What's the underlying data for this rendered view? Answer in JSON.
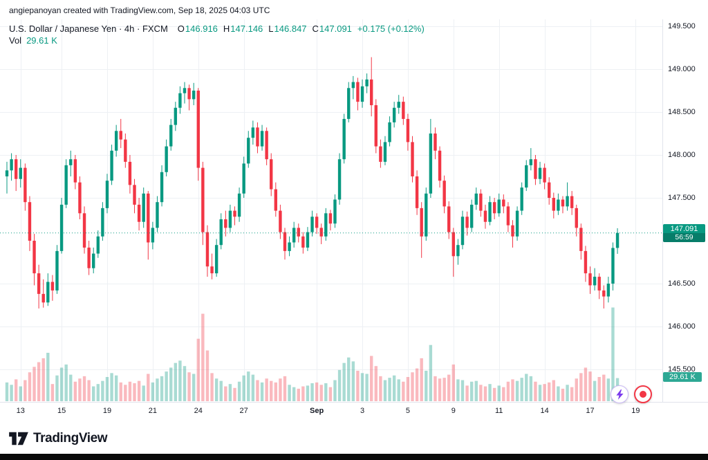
{
  "attribution": "angiepanoyan created with TradingView.com, Sep 18, 2025 04:03 UTC",
  "legend": {
    "title": "U.S. Dollar / Japanese Yen · 4h · FXCM",
    "ohlc": [
      {
        "label": "O",
        "value": "146.916"
      },
      {
        "label": "H",
        "value": "147.146"
      },
      {
        "label": "L",
        "value": "146.847"
      },
      {
        "label": "C",
        "value": "147.091"
      }
    ],
    "change": "+0.175 (+0.12%)",
    "vol_label": "Vol",
    "vol_value": "29.61 K"
  },
  "price_axis": {
    "badge": {
      "price": "147.091",
      "countdown": "56:59"
    },
    "volume_badge": "29.61 K"
  },
  "footer": {
    "brand": "TradingView"
  },
  "icons": {
    "bottom_right": [
      "lightning-icon",
      "record-icon"
    ],
    "logo": "tradingview-17-mark"
  },
  "colors": {
    "up": "#089981",
    "down": "#F23645",
    "vol_up": "rgba(8,153,129,0.35)",
    "vol_down": "rgba(242,54,69,0.35)",
    "grid": "#EDF0F4",
    "axis_border": "#E0E3EB",
    "last_price_line": "#089981",
    "badge_bg": "#089981",
    "boost": "#7C3AED",
    "record": "#F23645",
    "text": "#131722"
  },
  "chart_data": {
    "type": "candlestick",
    "title": "U.S. Dollar / Japanese Yen",
    "interval": "4h",
    "venue": "FXCM",
    "legend_position": "top-left",
    "grid": true,
    "y_ticks": [
      "149.500",
      "149.000",
      "148.500",
      "148.000",
      "147.500",
      "146.500",
      "146.000",
      "145.500"
    ],
    "y_range_visible": [
      145.11,
      149.58
    ],
    "x_ticks": [
      {
        "t": "13",
        "slot": 3
      },
      {
        "t": "15",
        "slot": 12
      },
      {
        "t": "19",
        "slot": 22
      },
      {
        "t": "21",
        "slot": 32
      },
      {
        "t": "24",
        "slot": 42
      },
      {
        "t": "27",
        "slot": 52
      },
      {
        "t": "Sep",
        "slot": 68,
        "bold": true
      },
      {
        "t": "3",
        "slot": 78
      },
      {
        "t": "5",
        "slot": 88
      },
      {
        "t": "9",
        "slot": 98
      },
      {
        "t": "11",
        "slot": 108
      },
      {
        "t": "14",
        "slot": 118
      },
      {
        "t": "17",
        "slot": 128
      },
      {
        "t": "19",
        "slot": 138
      }
    ],
    "total_slots": 143,
    "last_price": 147.091,
    "countdown": "56:59",
    "last_volume_k": 29.61,
    "candle_fields": [
      "open",
      "high",
      "low",
      "close",
      "volume_k"
    ],
    "candles": [
      [
        147.75,
        147.92,
        147.55,
        147.82,
        24
      ],
      [
        147.82,
        148.02,
        147.7,
        147.95,
        21
      ],
      [
        147.95,
        148.0,
        147.58,
        147.72,
        28
      ],
      [
        147.72,
        147.95,
        147.62,
        147.85,
        19
      ],
      [
        147.85,
        147.9,
        147.35,
        147.45,
        27
      ],
      [
        147.45,
        147.52,
        146.88,
        147.0,
        37
      ],
      [
        147.0,
        147.08,
        146.48,
        146.62,
        44
      ],
      [
        146.62,
        146.72,
        146.21,
        146.38,
        50
      ],
      [
        146.38,
        146.55,
        146.22,
        146.28,
        55
      ],
      [
        146.28,
        146.62,
        146.24,
        146.52,
        62
      ],
      [
        146.52,
        146.6,
        146.3,
        146.42,
        22
      ],
      [
        146.42,
        146.95,
        146.38,
        146.88,
        33
      ],
      [
        146.88,
        147.5,
        146.85,
        147.42,
        43
      ],
      [
        147.42,
        147.95,
        147.38,
        147.88,
        47
      ],
      [
        147.88,
        148.05,
        147.75,
        147.95,
        34
      ],
      [
        147.95,
        148.0,
        147.6,
        147.68,
        25
      ],
      [
        147.68,
        147.75,
        147.25,
        147.32,
        29
      ],
      [
        147.32,
        147.4,
        146.85,
        146.92,
        32
      ],
      [
        146.92,
        147.0,
        146.6,
        146.68,
        27
      ],
      [
        146.68,
        146.92,
        146.62,
        146.85,
        19
      ],
      [
        146.85,
        147.12,
        146.8,
        147.05,
        22
      ],
      [
        147.05,
        147.45,
        147.0,
        147.38,
        26
      ],
      [
        147.38,
        147.78,
        147.32,
        147.7,
        31
      ],
      [
        147.7,
        148.12,
        147.65,
        148.05,
        36
      ],
      [
        148.05,
        148.35,
        147.98,
        148.28,
        33
      ],
      [
        148.28,
        148.42,
        148.08,
        148.18,
        24
      ],
      [
        148.18,
        148.25,
        147.85,
        147.92,
        21
      ],
      [
        147.92,
        148.0,
        147.55,
        147.65,
        25
      ],
      [
        147.65,
        147.72,
        147.32,
        147.42,
        23
      ],
      [
        147.42,
        147.5,
        147.12,
        147.22,
        26
      ],
      [
        147.22,
        147.62,
        147.15,
        147.55,
        20
      ],
      [
        147.55,
        147.58,
        146.78,
        146.98,
        35
      ],
      [
        146.98,
        147.22,
        146.9,
        147.15,
        24
      ],
      [
        147.15,
        147.52,
        147.1,
        147.45,
        29
      ],
      [
        147.45,
        147.88,
        147.4,
        147.8,
        32
      ],
      [
        147.8,
        148.18,
        147.75,
        148.1,
        38
      ],
      [
        148.1,
        148.42,
        148.05,
        148.35,
        43
      ],
      [
        148.35,
        148.62,
        148.28,
        148.55,
        49
      ],
      [
        148.55,
        148.8,
        148.48,
        148.72,
        52
      ],
      [
        148.72,
        148.85,
        148.6,
        148.78,
        45
      ],
      [
        148.78,
        148.82,
        148.52,
        148.65,
        37
      ],
      [
        148.65,
        148.84,
        148.58,
        148.75,
        35
      ],
      [
        148.75,
        148.78,
        147.7,
        147.85,
        80
      ],
      [
        147.85,
        147.92,
        146.95,
        147.1,
        112
      ],
      [
        147.1,
        147.18,
        146.58,
        146.7,
        65
      ],
      [
        146.7,
        146.85,
        146.55,
        146.62,
        36
      ],
      [
        146.62,
        147.02,
        146.58,
        146.95,
        29
      ],
      [
        146.95,
        147.32,
        146.9,
        147.25,
        26
      ],
      [
        147.25,
        147.35,
        147.05,
        147.15,
        19
      ],
      [
        147.15,
        147.42,
        147.1,
        147.35,
        22
      ],
      [
        147.35,
        147.4,
        147.18,
        147.28,
        17
      ],
      [
        147.28,
        147.62,
        147.22,
        147.55,
        25
      ],
      [
        147.55,
        147.98,
        147.5,
        147.9,
        33
      ],
      [
        147.9,
        148.28,
        147.85,
        148.2,
        38
      ],
      [
        148.2,
        148.4,
        148.12,
        148.32,
        34
      ],
      [
        148.32,
        148.38,
        148.02,
        148.1,
        27
      ],
      [
        148.1,
        148.35,
        148.05,
        148.28,
        24
      ],
      [
        148.28,
        148.32,
        147.88,
        147.95,
        29
      ],
      [
        147.95,
        148.02,
        147.52,
        147.6,
        26
      ],
      [
        147.6,
        147.68,
        147.28,
        147.35,
        24
      ],
      [
        147.35,
        147.42,
        147.02,
        147.1,
        29
      ],
      [
        147.1,
        147.15,
        146.78,
        146.88,
        32
      ],
      [
        146.88,
        147.05,
        146.82,
        146.98,
        21
      ],
      [
        146.98,
        147.22,
        146.92,
        147.15,
        18
      ],
      [
        147.15,
        147.2,
        146.98,
        147.05,
        16
      ],
      [
        147.05,
        147.1,
        146.85,
        146.92,
        19
      ],
      [
        146.92,
        147.16,
        146.88,
        147.1,
        20
      ],
      [
        147.1,
        147.35,
        147.05,
        147.28,
        23
      ],
      [
        147.28,
        147.32,
        147.08,
        147.15,
        24
      ],
      [
        147.15,
        147.2,
        146.96,
        147.05,
        21
      ],
      [
        147.05,
        147.38,
        147.0,
        147.32,
        23
      ],
      [
        147.32,
        147.36,
        147.12,
        147.2,
        18
      ],
      [
        147.2,
        147.54,
        147.15,
        147.48,
        27
      ],
      [
        147.48,
        148.02,
        147.42,
        147.95,
        40
      ],
      [
        147.95,
        148.48,
        147.9,
        148.42,
        49
      ],
      [
        148.42,
        148.85,
        148.38,
        148.78,
        56
      ],
      [
        148.78,
        148.92,
        148.65,
        148.85,
        51
      ],
      [
        148.85,
        148.9,
        148.52,
        148.62,
        39
      ],
      [
        148.62,
        148.88,
        148.55,
        148.8,
        36
      ],
      [
        148.8,
        148.95,
        148.72,
        148.88,
        35
      ],
      [
        148.88,
        149.14,
        148.45,
        148.58,
        58
      ],
      [
        148.58,
        148.65,
        148.02,
        148.1,
        45
      ],
      [
        148.1,
        148.18,
        147.85,
        147.92,
        32
      ],
      [
        147.92,
        148.22,
        147.88,
        148.15,
        27
      ],
      [
        148.15,
        148.45,
        148.1,
        148.38,
        30
      ],
      [
        148.38,
        148.62,
        148.32,
        148.55,
        33
      ],
      [
        148.55,
        148.7,
        148.48,
        148.62,
        28
      ],
      [
        148.62,
        148.68,
        148.35,
        148.42,
        25
      ],
      [
        148.42,
        148.48,
        148.05,
        148.15,
        31
      ],
      [
        148.15,
        148.22,
        147.68,
        147.75,
        37
      ],
      [
        147.75,
        147.82,
        147.3,
        147.38,
        42
      ],
      [
        147.38,
        147.45,
        146.8,
        147.05,
        55
      ],
      [
        147.05,
        147.62,
        147.0,
        147.55,
        39
      ],
      [
        147.55,
        148.42,
        147.5,
        148.25,
        72
      ],
      [
        148.25,
        148.32,
        147.95,
        148.05,
        32
      ],
      [
        148.05,
        148.1,
        147.62,
        147.7,
        29
      ],
      [
        147.7,
        147.76,
        147.32,
        147.4,
        30
      ],
      [
        147.4,
        147.46,
        147.02,
        147.1,
        34
      ],
      [
        147.1,
        147.15,
        146.58,
        146.82,
        47
      ],
      [
        146.82,
        147.02,
        146.72,
        146.95,
        28
      ],
      [
        146.95,
        147.35,
        146.9,
        147.28,
        27
      ],
      [
        147.28,
        147.34,
        147.06,
        147.15,
        20
      ],
      [
        147.15,
        147.48,
        147.1,
        147.42,
        25
      ],
      [
        147.42,
        147.62,
        147.36,
        147.55,
        26
      ],
      [
        147.55,
        147.6,
        147.28,
        147.35,
        21
      ],
      [
        147.35,
        147.42,
        147.14,
        147.22,
        19
      ],
      [
        147.22,
        147.52,
        147.18,
        147.45,
        22
      ],
      [
        147.45,
        147.5,
        147.25,
        147.32,
        17
      ],
      [
        147.32,
        147.55,
        147.28,
        147.48,
        20
      ],
      [
        147.48,
        147.54,
        147.32,
        147.4,
        18
      ],
      [
        147.4,
        147.45,
        147.1,
        147.18,
        25
      ],
      [
        147.18,
        147.24,
        146.92,
        147.05,
        28
      ],
      [
        147.05,
        147.4,
        147.0,
        147.35,
        26
      ],
      [
        147.35,
        147.68,
        147.3,
        147.62,
        30
      ],
      [
        147.62,
        147.94,
        147.58,
        147.88,
        35
      ],
      [
        147.88,
        148.08,
        147.82,
        147.95,
        32
      ],
      [
        147.95,
        148.0,
        147.65,
        147.72,
        25
      ],
      [
        147.72,
        147.92,
        147.66,
        147.85,
        21
      ],
      [
        147.85,
        147.9,
        147.6,
        147.68,
        22
      ],
      [
        147.68,
        147.74,
        147.42,
        147.5,
        24
      ],
      [
        147.5,
        147.56,
        147.26,
        147.35,
        27
      ],
      [
        147.35,
        147.55,
        147.3,
        147.48,
        19
      ],
      [
        147.48,
        147.52,
        147.32,
        147.4,
        16
      ],
      [
        147.4,
        147.68,
        147.35,
        147.52,
        21
      ],
      [
        147.52,
        147.58,
        147.3,
        147.38,
        18
      ],
      [
        147.38,
        147.42,
        147.05,
        147.15,
        29
      ],
      [
        147.15,
        147.2,
        146.78,
        146.88,
        36
      ],
      [
        146.88,
        146.94,
        146.52,
        146.62,
        43
      ],
      [
        146.62,
        146.7,
        146.38,
        146.48,
        38
      ],
      [
        146.48,
        146.68,
        146.42,
        146.58,
        26
      ],
      [
        146.58,
        146.62,
        146.32,
        146.42,
        31
      ],
      [
        146.42,
        146.48,
        146.21,
        146.35,
        34
      ],
      [
        146.35,
        146.58,
        146.28,
        146.5,
        29
      ],
      [
        146.5,
        146.98,
        146.42,
        146.916,
        120
      ],
      [
        146.916,
        147.146,
        146.847,
        147.091,
        29.61
      ]
    ]
  }
}
